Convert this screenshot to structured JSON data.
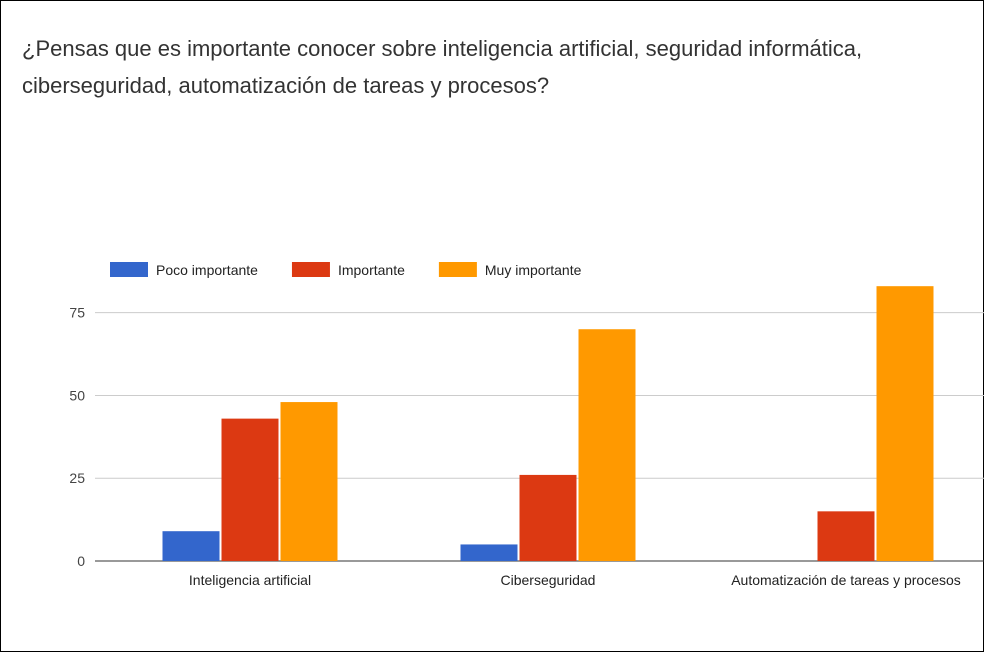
{
  "chart_data": {
    "type": "bar",
    "title": "¿Pensas que es importante conocer sobre inteligencia artificial, seguridad informática, ciberseguridad, automatización de tareas y procesos?",
    "categories": [
      "Inteligencia artificial",
      "Ciberseguridad",
      "Automatización de tareas y procesos"
    ],
    "series": [
      {
        "name": "Poco importante",
        "color": "#3366cc",
        "values": [
          9,
          5,
          0
        ]
      },
      {
        "name": "Importante",
        "color": "#dc3912",
        "values": [
          43,
          26,
          15
        ]
      },
      {
        "name": "Muy importante",
        "color": "#ff9900",
        "values": [
          48,
          70,
          83
        ]
      }
    ],
    "ylim": [
      0,
      90
    ],
    "yticks": [
      0,
      25,
      50,
      75
    ],
    "grid": true,
    "legend": "top"
  }
}
